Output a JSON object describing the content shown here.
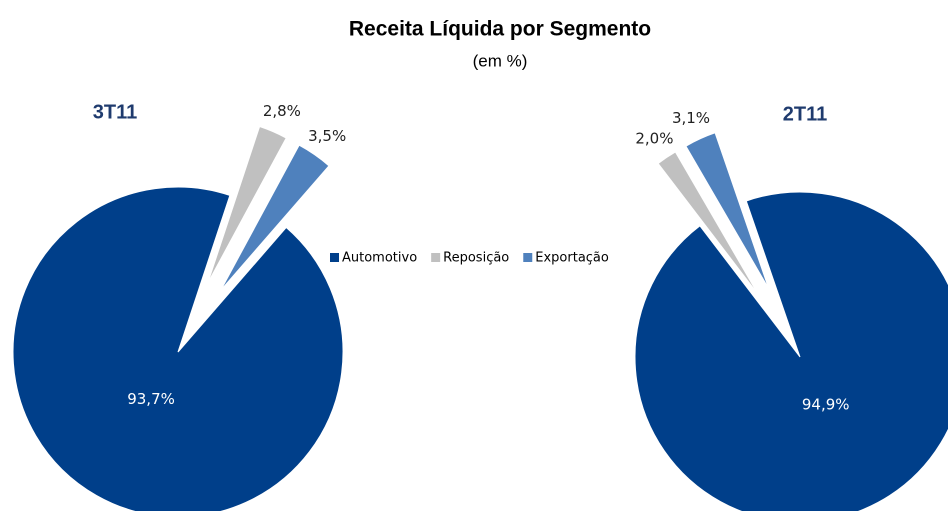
{
  "header": {
    "title": "Receita Líquida por Segmento",
    "subtitle": "(em %)"
  },
  "chart_data": [
    {
      "type": "pie",
      "title": "3T11",
      "categories": [
        "Automotivo",
        "Reposição",
        "Exportação"
      ],
      "values": [
        93.7,
        2.8,
        3.5
      ],
      "value_labels": [
        "93,7%",
        "2,8%",
        "3,5%"
      ],
      "colors": [
        "#003f8a",
        "#c0c0c0",
        "#4f81bd"
      ]
    },
    {
      "type": "pie",
      "title": "2T11",
      "categories": [
        "Automotivo",
        "Reposição",
        "Exportação"
      ],
      "values": [
        94.9,
        2.0,
        3.1
      ],
      "value_labels": [
        "94,9%",
        "2,0%",
        "3,1%"
      ],
      "colors": [
        "#003f8a",
        "#c0c0c0",
        "#4f81bd"
      ]
    }
  ]
}
